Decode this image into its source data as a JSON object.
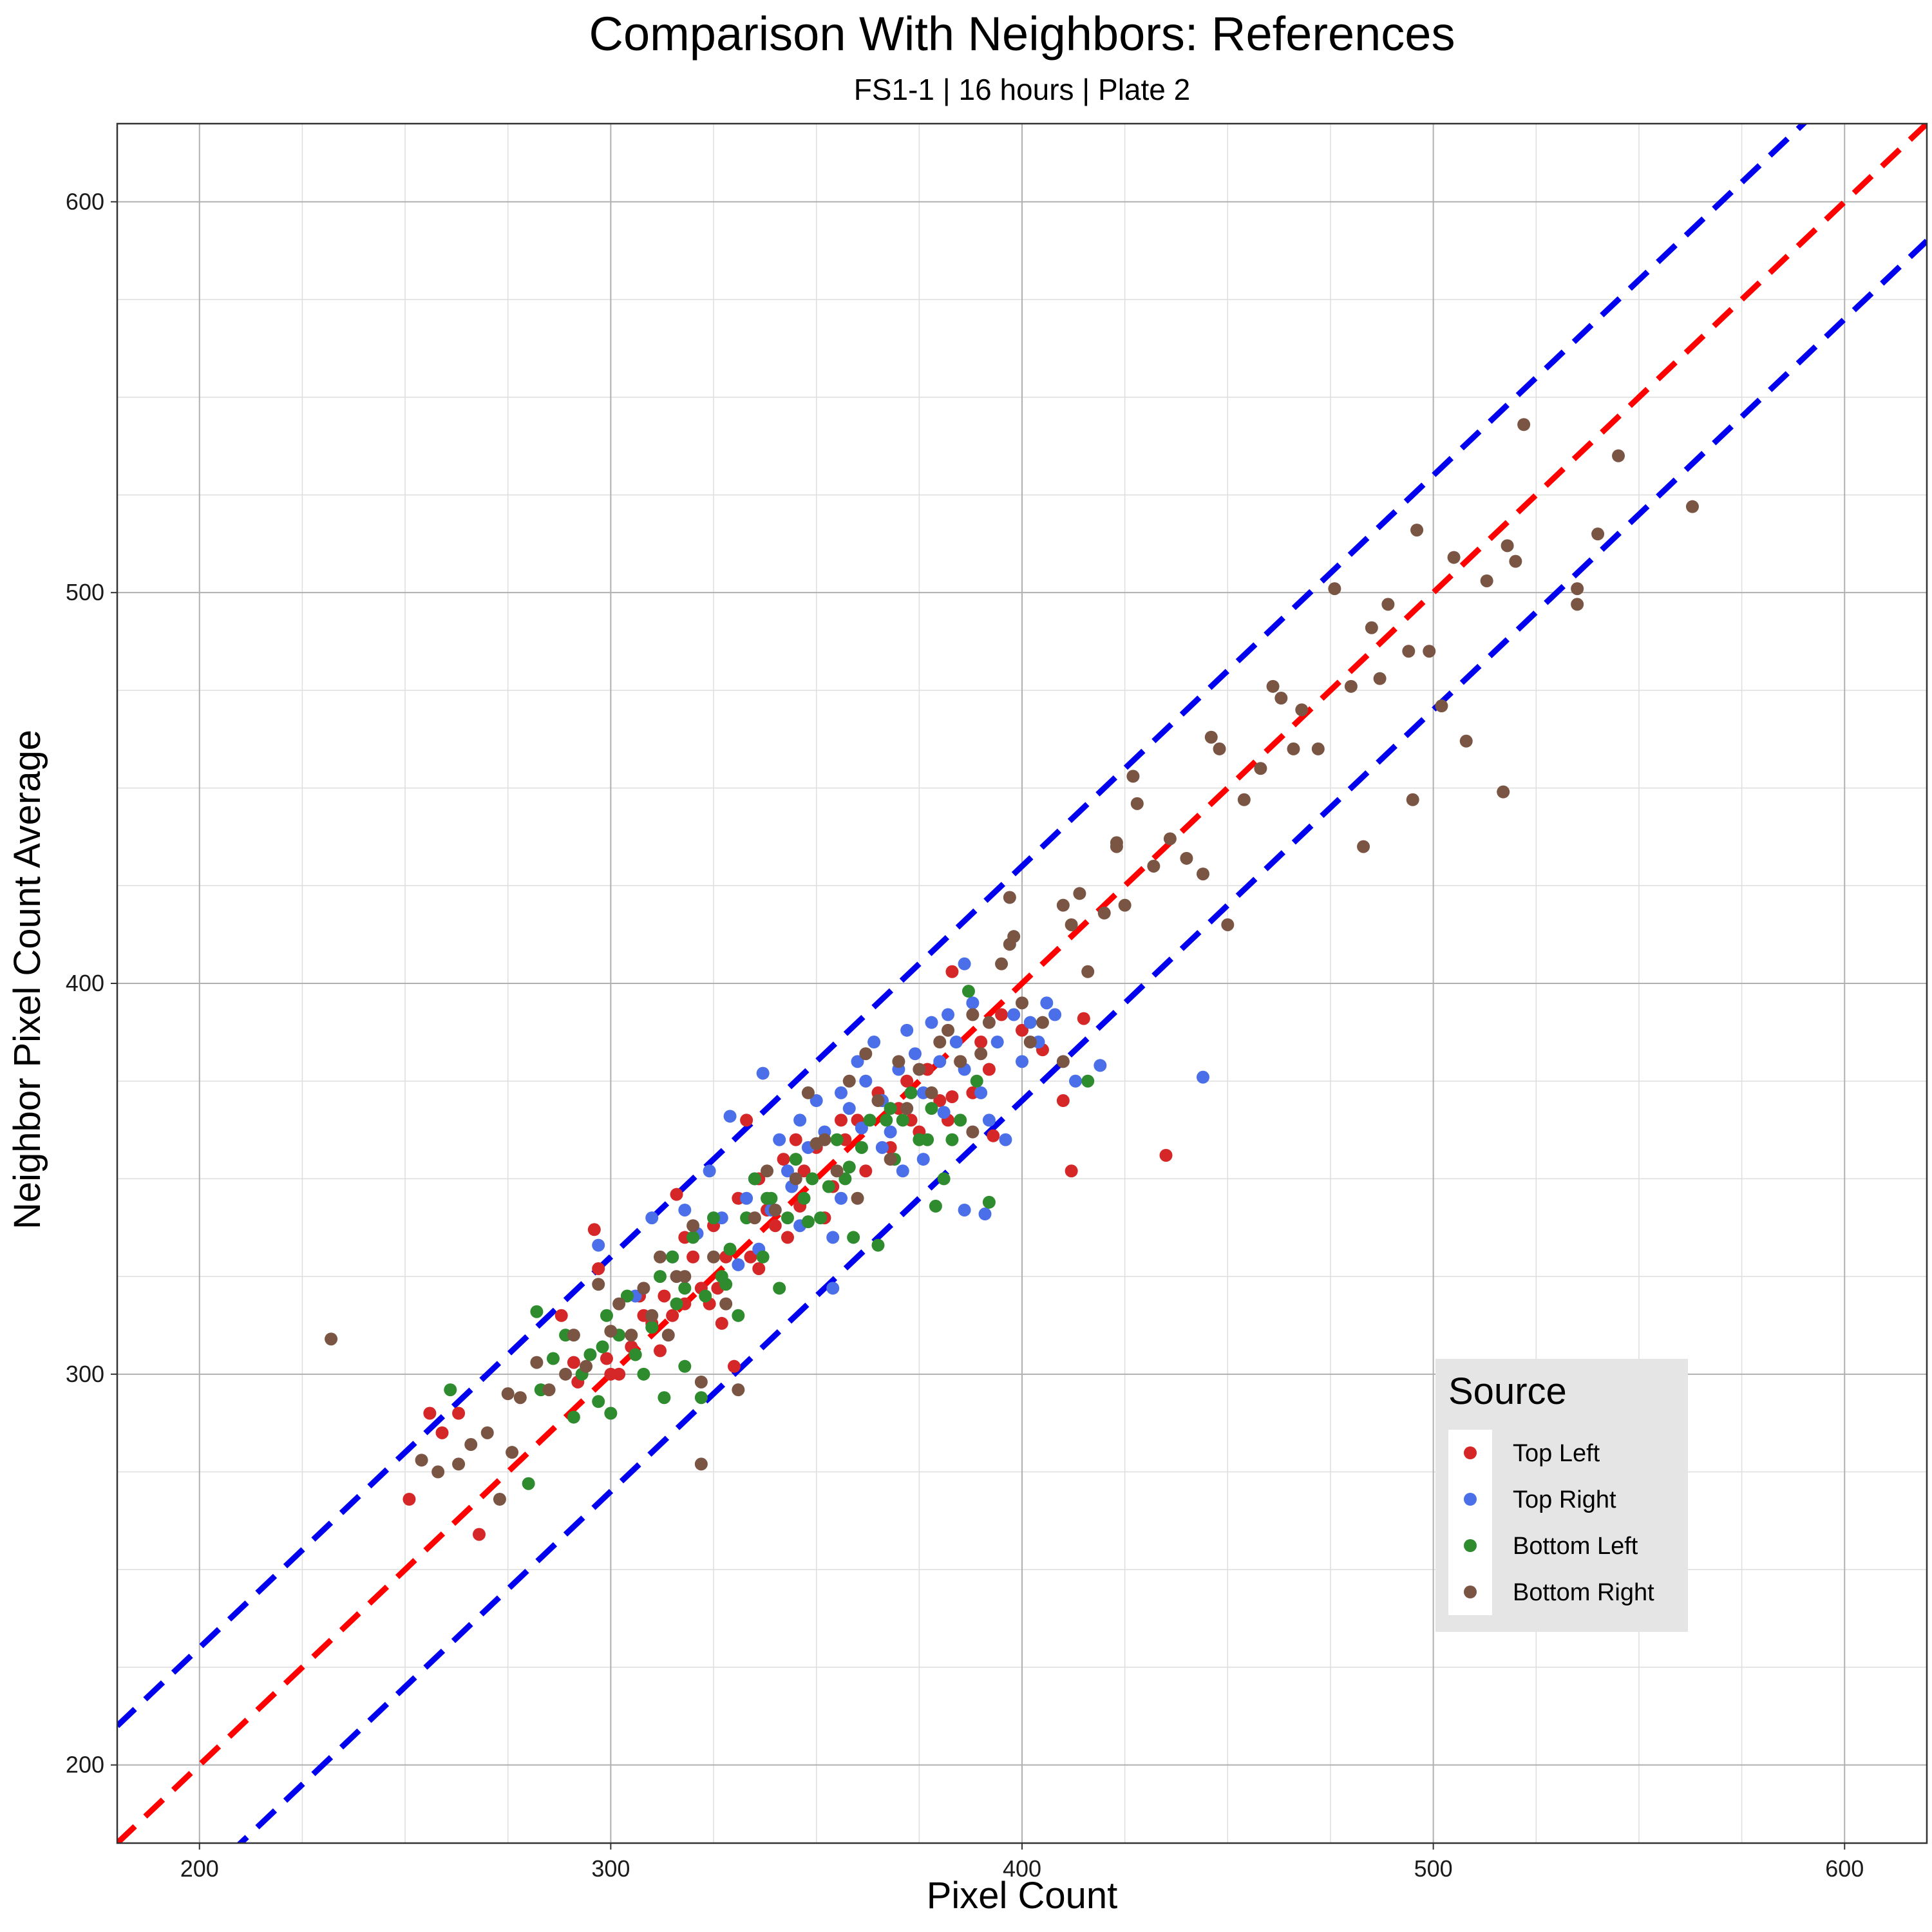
{
  "chart_data": {
    "type": "scatter",
    "title": "Comparison With Neighbors: References",
    "subtitle": "FS1-1 | 16 hours | Plate 2",
    "xlabel": "Pixel Count",
    "ylabel": "Neighbor Pixel Count Average",
    "xlim": [
      180,
      620
    ],
    "ylim": [
      180,
      620
    ],
    "xticks": [
      "200",
      "300",
      "400",
      "500",
      "600"
    ],
    "yticks": [
      "200",
      "300",
      "400",
      "500",
      "600"
    ],
    "grid": true,
    "legend": {
      "title": "Source",
      "position": "bottom-right-inside",
      "entries": [
        "Top Left",
        "Top Right",
        "Bottom Left",
        "Bottom Right"
      ]
    },
    "reference_lines": [
      {
        "slope": 1,
        "intercept": 0,
        "color": "#ff0000",
        "style": "dashed"
      },
      {
        "slope": 1,
        "intercept": 30,
        "color": "#0000ee",
        "style": "dashed"
      },
      {
        "slope": 1,
        "intercept": -30,
        "color": "#0000ee",
        "style": "dashed"
      }
    ],
    "series": [
      {
        "name": "Top Left",
        "color": "#d62728",
        "points": [
          [
            251,
            268
          ],
          [
            256,
            290
          ],
          [
            259,
            285
          ],
          [
            263,
            290
          ],
          [
            268,
            259
          ],
          [
            288,
            315
          ],
          [
            291,
            303
          ],
          [
            296,
            337
          ],
          [
            297,
            327
          ],
          [
            299,
            304
          ],
          [
            302,
            300
          ],
          [
            305,
            307
          ],
          [
            307,
            320
          ],
          [
            310,
            313
          ],
          [
            312,
            306
          ],
          [
            313,
            320
          ],
          [
            315,
            315
          ],
          [
            316,
            346
          ],
          [
            318,
            318
          ],
          [
            320,
            330
          ],
          [
            322,
            322
          ],
          [
            324,
            318
          ],
          [
            325,
            338
          ],
          [
            327,
            313
          ],
          [
            328,
            330
          ],
          [
            330,
            302
          ],
          [
            331,
            345
          ],
          [
            333,
            365
          ],
          [
            334,
            330
          ],
          [
            336,
            350
          ],
          [
            338,
            342
          ],
          [
            340,
            338
          ],
          [
            342,
            355
          ],
          [
            343,
            335
          ],
          [
            345,
            360
          ],
          [
            347,
            352
          ],
          [
            350,
            358
          ],
          [
            352,
            340
          ],
          [
            354,
            348
          ],
          [
            357,
            360
          ],
          [
            360,
            365
          ],
          [
            362,
            352
          ],
          [
            365,
            372
          ],
          [
            368,
            358
          ],
          [
            370,
            368
          ],
          [
            372,
            375
          ],
          [
            375,
            362
          ],
          [
            377,
            378
          ],
          [
            380,
            370
          ],
          [
            382,
            365
          ],
          [
            385,
            380
          ],
          [
            388,
            372
          ],
          [
            390,
            385
          ],
          [
            392,
            378
          ],
          [
            395,
            392
          ],
          [
            400,
            388
          ],
          [
            405,
            383
          ],
          [
            410,
            370
          ],
          [
            412,
            352
          ],
          [
            415,
            391
          ],
          [
            435,
            356
          ],
          [
            292,
            298
          ],
          [
            300,
            300
          ],
          [
            308,
            315
          ],
          [
            318,
            335
          ],
          [
            326,
            322
          ],
          [
            336,
            327
          ],
          [
            346,
            343
          ],
          [
            356,
            365
          ],
          [
            366,
            370
          ],
          [
            373,
            365
          ],
          [
            383,
            371
          ],
          [
            393,
            361
          ],
          [
            383,
            403
          ]
        ]
      },
      {
        "name": "Top Right",
        "color": "#4a6fe8",
        "points": [
          [
            297,
            333
          ],
          [
            306,
            320
          ],
          [
            310,
            340
          ],
          [
            315,
            330
          ],
          [
            318,
            342
          ],
          [
            321,
            336
          ],
          [
            324,
            352
          ],
          [
            327,
            340
          ],
          [
            329,
            366
          ],
          [
            331,
            328
          ],
          [
            333,
            345
          ],
          [
            335,
            350
          ],
          [
            337,
            377
          ],
          [
            339,
            342
          ],
          [
            341,
            360
          ],
          [
            343,
            352
          ],
          [
            344,
            348
          ],
          [
            346,
            365
          ],
          [
            348,
            358
          ],
          [
            350,
            370
          ],
          [
            352,
            362
          ],
          [
            354,
            322
          ],
          [
            356,
            372
          ],
          [
            358,
            368
          ],
          [
            360,
            380
          ],
          [
            362,
            375
          ],
          [
            364,
            385
          ],
          [
            366,
            370
          ],
          [
            368,
            362
          ],
          [
            370,
            378
          ],
          [
            372,
            388
          ],
          [
            374,
            382
          ],
          [
            376,
            372
          ],
          [
            378,
            390
          ],
          [
            380,
            380
          ],
          [
            382,
            392
          ],
          [
            384,
            385
          ],
          [
            386,
            378
          ],
          [
            388,
            395
          ],
          [
            390,
            372
          ],
          [
            392,
            365
          ],
          [
            394,
            385
          ],
          [
            396,
            360
          ],
          [
            398,
            392
          ],
          [
            400,
            380
          ],
          [
            402,
            390
          ],
          [
            404,
            385
          ],
          [
            406,
            395
          ],
          [
            408,
            392
          ],
          [
            413,
            375
          ],
          [
            419,
            379
          ],
          [
            444,
            376
          ],
          [
            386,
            342
          ],
          [
            391,
            341
          ],
          [
            376,
            355
          ],
          [
            366,
            358
          ],
          [
            356,
            345
          ],
          [
            346,
            338
          ],
          [
            386,
            405
          ],
          [
            336,
            332
          ],
          [
            354,
            335
          ],
          [
            371,
            352
          ],
          [
            381,
            367
          ],
          [
            361,
            363
          ]
        ]
      },
      {
        "name": "Bottom Left",
        "color": "#2e8b2e",
        "points": [
          [
            261,
            296
          ],
          [
            280,
            272
          ],
          [
            283,
            296
          ],
          [
            286,
            304
          ],
          [
            289,
            310
          ],
          [
            291,
            289
          ],
          [
            293,
            300
          ],
          [
            295,
            305
          ],
          [
            297,
            293
          ],
          [
            299,
            315
          ],
          [
            300,
            290
          ],
          [
            302,
            310
          ],
          [
            304,
            320
          ],
          [
            306,
            305
          ],
          [
            308,
            300
          ],
          [
            310,
            312
          ],
          [
            312,
            325
          ],
          [
            313,
            294
          ],
          [
            315,
            330
          ],
          [
            316,
            318
          ],
          [
            318,
            302
          ],
          [
            320,
            335
          ],
          [
            322,
            294
          ],
          [
            323,
            320
          ],
          [
            325,
            340
          ],
          [
            327,
            325
          ],
          [
            329,
            332
          ],
          [
            331,
            315
          ],
          [
            333,
            340
          ],
          [
            335,
            350
          ],
          [
            337,
            330
          ],
          [
            339,
            345
          ],
          [
            341,
            322
          ],
          [
            343,
            340
          ],
          [
            345,
            355
          ],
          [
            347,
            345
          ],
          [
            349,
            350
          ],
          [
            351,
            340
          ],
          [
            353,
            348
          ],
          [
            355,
            360
          ],
          [
            357,
            350
          ],
          [
            359,
            335
          ],
          [
            361,
            358
          ],
          [
            363,
            365
          ],
          [
            365,
            333
          ],
          [
            367,
            365
          ],
          [
            369,
            355
          ],
          [
            371,
            365
          ],
          [
            373,
            372
          ],
          [
            375,
            360
          ],
          [
            377,
            360
          ],
          [
            379,
            343
          ],
          [
            381,
            350
          ],
          [
            383,
            360
          ],
          [
            385,
            365
          ],
          [
            387,
            398
          ],
          [
            389,
            375
          ],
          [
            392,
            344
          ],
          [
            416,
            375
          ],
          [
            282,
            316
          ],
          [
            298,
            307
          ],
          [
            318,
            322
          ],
          [
            328,
            323
          ],
          [
            338,
            345
          ],
          [
            348,
            339
          ],
          [
            358,
            353
          ],
          [
            368,
            368
          ],
          [
            378,
            368
          ]
        ]
      },
      {
        "name": "Bottom Right",
        "color": "#7b5544",
        "points": [
          [
            232,
            309
          ],
          [
            254,
            278
          ],
          [
            258,
            275
          ],
          [
            263,
            277
          ],
          [
            266,
            282
          ],
          [
            270,
            285
          ],
          [
            273,
            268
          ],
          [
            275,
            295
          ],
          [
            276,
            280
          ],
          [
            278,
            294
          ],
          [
            282,
            303
          ],
          [
            285,
            296
          ],
          [
            289,
            300
          ],
          [
            291,
            310
          ],
          [
            294,
            302
          ],
          [
            297,
            323
          ],
          [
            300,
            311
          ],
          [
            302,
            318
          ],
          [
            305,
            310
          ],
          [
            308,
            322
          ],
          [
            310,
            315
          ],
          [
            312,
            330
          ],
          [
            314,
            310
          ],
          [
            316,
            325
          ],
          [
            320,
            338
          ],
          [
            322,
            298
          ],
          [
            325,
            330
          ],
          [
            328,
            318
          ],
          [
            331,
            296
          ],
          [
            335,
            340
          ],
          [
            338,
            352
          ],
          [
            340,
            342
          ],
          [
            345,
            350
          ],
          [
            348,
            372
          ],
          [
            352,
            360
          ],
          [
            355,
            352
          ],
          [
            358,
            375
          ],
          [
            360,
            345
          ],
          [
            362,
            382
          ],
          [
            365,
            370
          ],
          [
            368,
            355
          ],
          [
            370,
            380
          ],
          [
            372,
            368
          ],
          [
            375,
            378
          ],
          [
            378,
            372
          ],
          [
            380,
            385
          ],
          [
            382,
            388
          ],
          [
            385,
            380
          ],
          [
            388,
            392
          ],
          [
            390,
            382
          ],
          [
            392,
            390
          ],
          [
            395,
            405
          ],
          [
            397,
            410
          ],
          [
            400,
            395
          ],
          [
            402,
            385
          ],
          [
            405,
            390
          ],
          [
            410,
            420
          ],
          [
            412,
            415
          ],
          [
            414,
            423
          ],
          [
            416,
            403
          ],
          [
            420,
            418
          ],
          [
            423,
            435
          ],
          [
            425,
            420
          ],
          [
            427,
            453
          ],
          [
            428,
            446
          ],
          [
            432,
            430
          ],
          [
            436,
            437
          ],
          [
            440,
            432
          ],
          [
            444,
            428
          ],
          [
            446,
            463
          ],
          [
            448,
            460
          ],
          [
            450,
            415
          ],
          [
            454,
            447
          ],
          [
            458,
            455
          ],
          [
            461,
            476
          ],
          [
            463,
            473
          ],
          [
            466,
            460
          ],
          [
            468,
            470
          ],
          [
            472,
            460
          ],
          [
            476,
            501
          ],
          [
            480,
            476
          ],
          [
            483,
            435
          ],
          [
            485,
            491
          ],
          [
            487,
            478
          ],
          [
            489,
            497
          ],
          [
            494,
            485
          ],
          [
            495,
            447
          ],
          [
            496,
            516
          ],
          [
            499,
            485
          ],
          [
            502,
            471
          ],
          [
            505,
            509
          ],
          [
            508,
            462
          ],
          [
            513,
            503
          ],
          [
            517,
            449
          ],
          [
            518,
            512
          ],
          [
            520,
            508
          ],
          [
            522,
            543
          ],
          [
            535,
            497
          ],
          [
            535,
            501
          ],
          [
            540,
            515
          ],
          [
            545,
            535
          ],
          [
            563,
            522
          ],
          [
            322,
            277
          ],
          [
            318,
            325
          ],
          [
            350,
            359
          ],
          [
            388,
            362
          ],
          [
            398,
            412
          ],
          [
            410,
            380
          ],
          [
            423,
            436
          ],
          [
            397,
            422
          ]
        ]
      }
    ]
  }
}
